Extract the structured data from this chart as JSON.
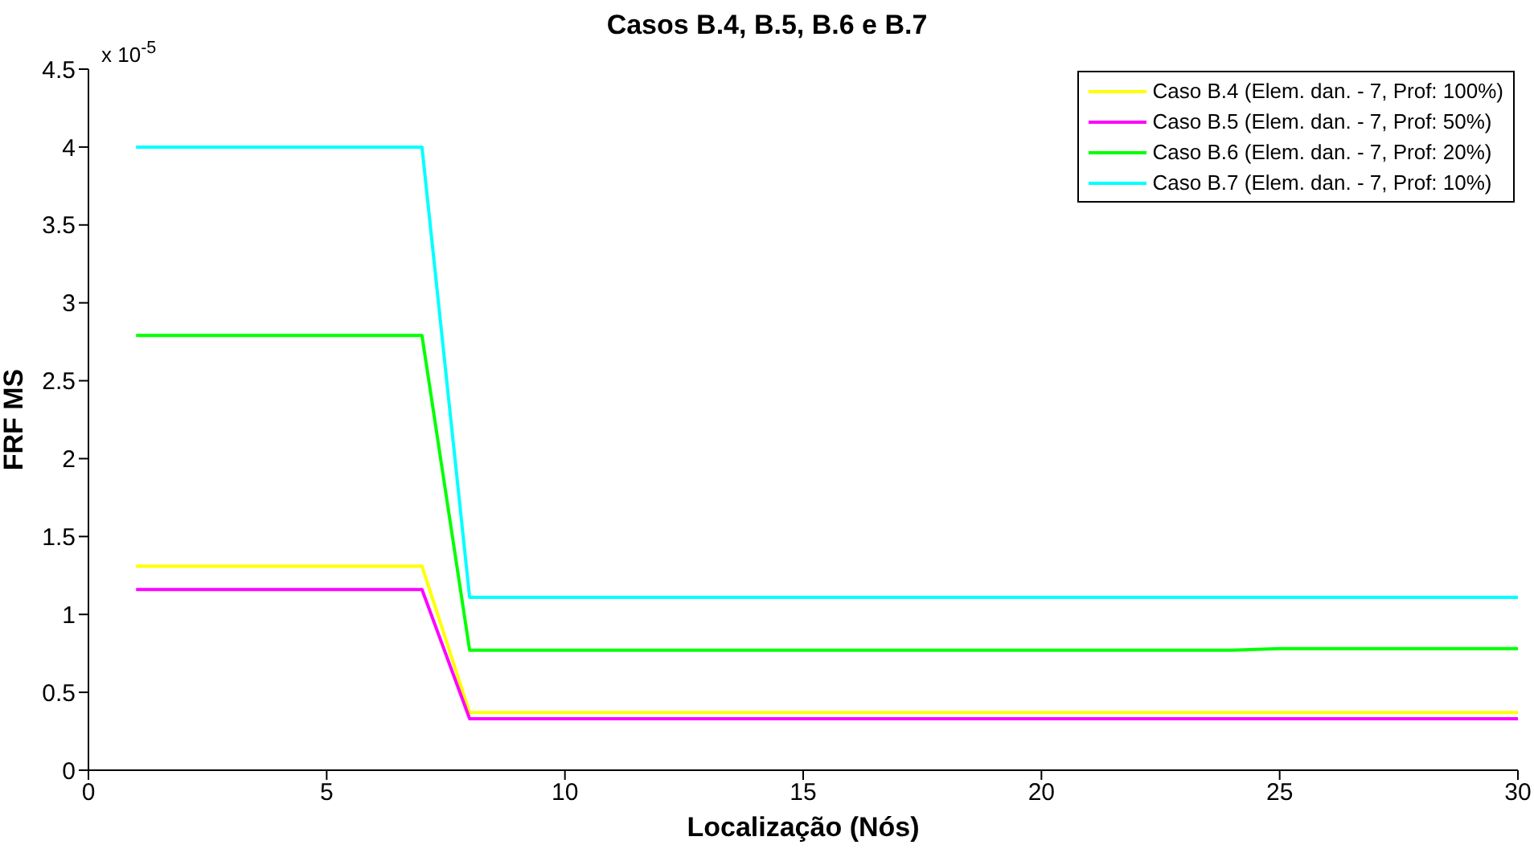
{
  "chart_data": {
    "type": "line",
    "title": "Casos B.4, B.5, B.6 e B.7",
    "xlabel": "Localização (Nós)",
    "ylabel": "FRF MS",
    "annotations": [
      "x 10$^{-5}$"
    ],
    "x": [
      1,
      2,
      3,
      4,
      5,
      6,
      7,
      8,
      9,
      10,
      11,
      12,
      13,
      14,
      15,
      16,
      17,
      18,
      19,
      20,
      21,
      22,
      23,
      24,
      25,
      26,
      27,
      28,
      29,
      30
    ],
    "series": [
      {
        "name": "Caso B.4 (Elem. dan. - 7, Prof: 100%)",
        "color": "#ffff00",
        "values": [
          1.31,
          1.31,
          1.31,
          1.31,
          1.31,
          1.31,
          1.31,
          0.37,
          0.37,
          0.37,
          0.37,
          0.37,
          0.37,
          0.37,
          0.37,
          0.37,
          0.37,
          0.37,
          0.37,
          0.37,
          0.37,
          0.37,
          0.37,
          0.37,
          0.37,
          0.37,
          0.37,
          0.37,
          0.37,
          0.37
        ]
      },
      {
        "name": "Caso B.5 (Elem. dan. - 7, Prof: 50%)",
        "color": "#ff00ff",
        "values": [
          1.16,
          1.16,
          1.16,
          1.16,
          1.16,
          1.16,
          1.16,
          0.33,
          0.33,
          0.33,
          0.33,
          0.33,
          0.33,
          0.33,
          0.33,
          0.33,
          0.33,
          0.33,
          0.33,
          0.33,
          0.33,
          0.33,
          0.33,
          0.33,
          0.33,
          0.33,
          0.33,
          0.33,
          0.33,
          0.33
        ]
      },
      {
        "name": "Caso B.6 (Elem. dan. - 7, Prof: 20%)",
        "color": "#00ff00",
        "values": [
          2.79,
          2.79,
          2.79,
          2.79,
          2.79,
          2.79,
          2.79,
          0.77,
          0.77,
          0.77,
          0.77,
          0.77,
          0.77,
          0.77,
          0.77,
          0.77,
          0.77,
          0.77,
          0.77,
          0.77,
          0.77,
          0.77,
          0.77,
          0.77,
          0.78,
          0.78,
          0.78,
          0.78,
          0.78,
          0.78
        ]
      },
      {
        "name": "Caso B.7 (Elem. dan. - 7, Prof: 10%)",
        "color": "#00ffff",
        "values": [
          4.0,
          4.0,
          4.0,
          4.0,
          4.0,
          4.0,
          4.0,
          1.11,
          1.11,
          1.11,
          1.11,
          1.11,
          1.11,
          1.11,
          1.11,
          1.11,
          1.11,
          1.11,
          1.11,
          1.11,
          1.11,
          1.11,
          1.11,
          1.11,
          1.11,
          1.11,
          1.11,
          1.11,
          1.11,
          1.11
        ]
      }
    ],
    "xlim": [
      0,
      30
    ],
    "xticks": [
      0,
      5,
      10,
      15,
      20,
      25,
      30
    ],
    "ylim": [
      0,
      4.5
    ],
    "yticks": [
      0,
      0.5,
      1,
      1.5,
      2,
      2.5,
      3,
      3.5,
      4,
      4.5
    ],
    "grid": false,
    "legend": "top right",
    "marker": "none",
    "line_style": "solid"
  }
}
